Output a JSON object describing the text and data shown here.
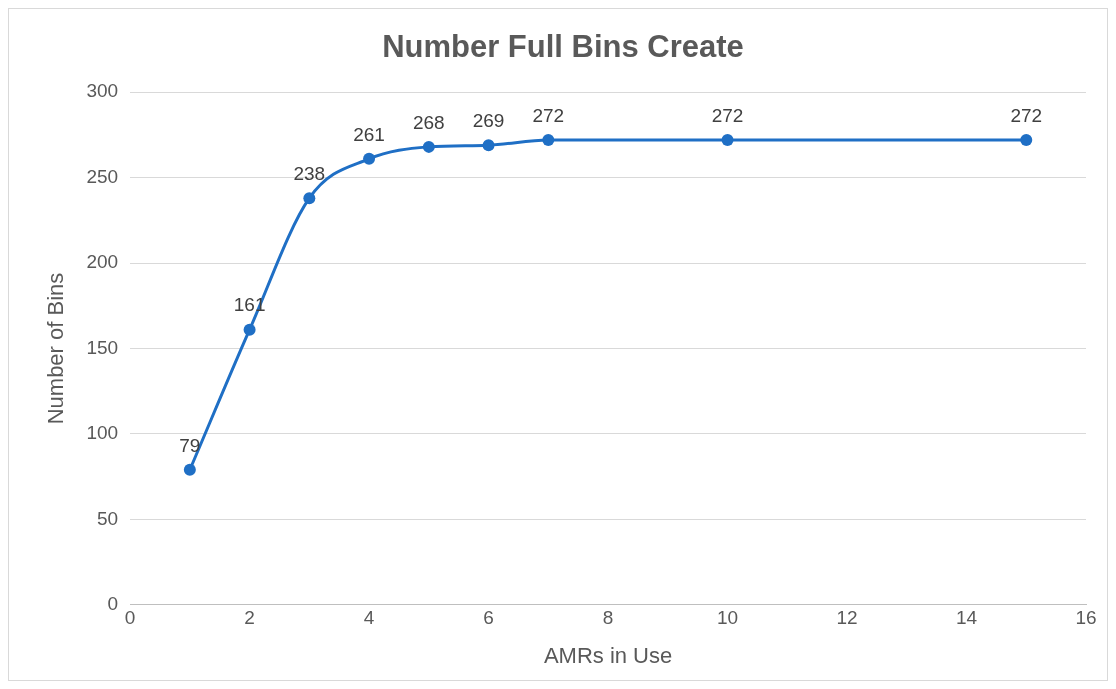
{
  "chart_data": {
    "type": "line",
    "title": "Number Full Bins Create",
    "xlabel": "AMRs in Use",
    "ylabel": "Number of Bins",
    "x": [
      1,
      2,
      3,
      4,
      5,
      6,
      7,
      10,
      15
    ],
    "values": [
      79,
      161,
      238,
      261,
      268,
      269,
      272,
      272,
      272
    ],
    "color": "#1f6fc5",
    "xlim": [
      0,
      16
    ],
    "xticks": [
      0,
      2,
      4,
      6,
      8,
      10,
      12,
      14,
      16
    ],
    "ylim": [
      0,
      300
    ],
    "yticks": [
      0,
      50,
      100,
      150,
      200,
      250,
      300
    ],
    "grid": "y",
    "marker": "circle",
    "line_style": "solid",
    "data_labels": true,
    "legend": false
  }
}
